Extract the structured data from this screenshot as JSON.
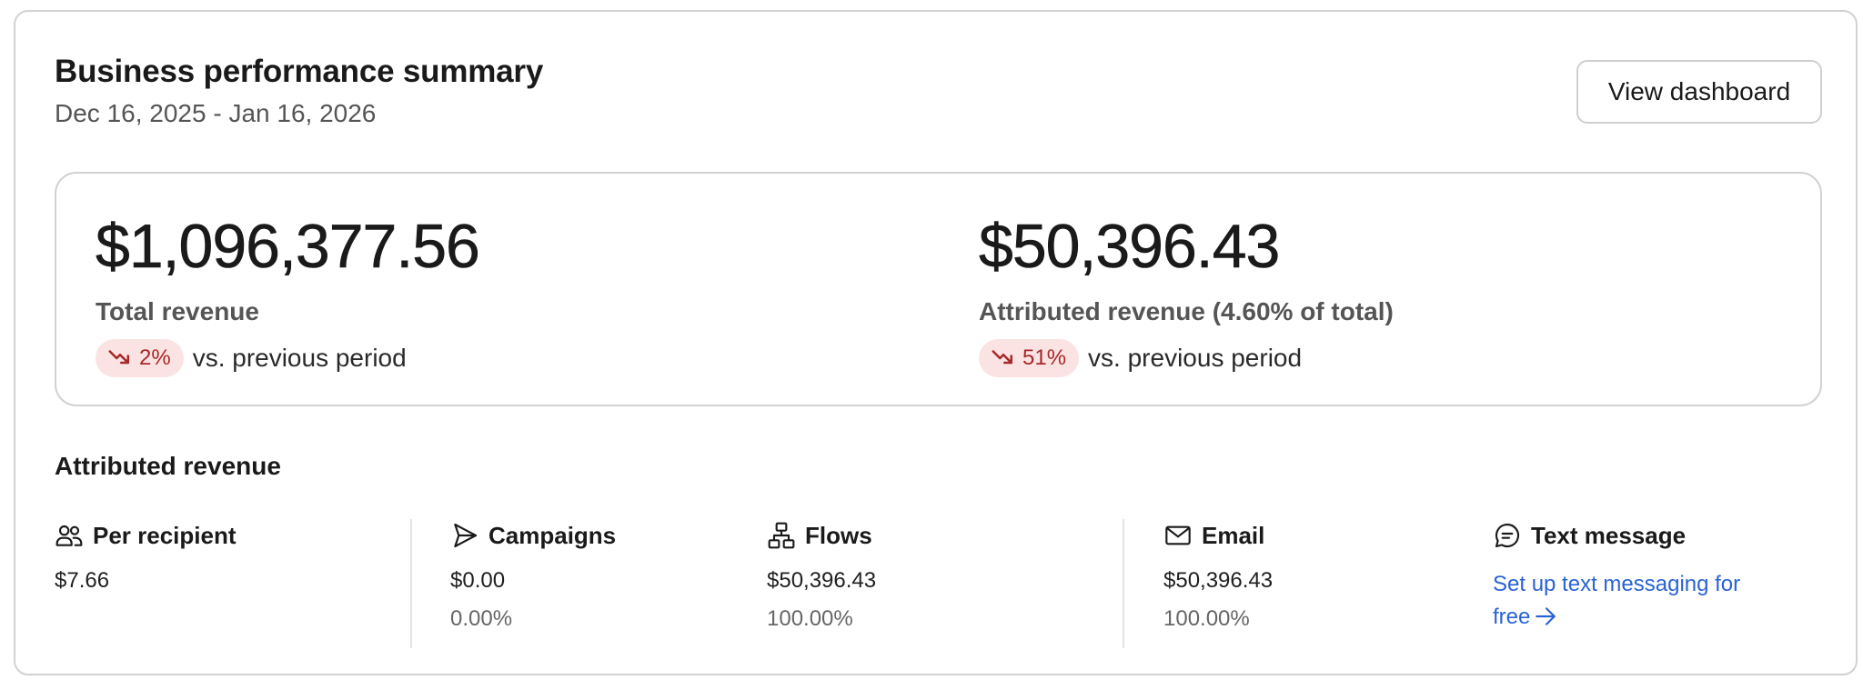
{
  "header": {
    "title": "Business performance summary",
    "date_range": "Dec 16, 2025 - Jan 16, 2026",
    "view_dashboard_label": "View dashboard"
  },
  "summary": {
    "total": {
      "value": "$1,096,377.56",
      "label": "Total revenue",
      "delta": "2%",
      "delta_direction": "down",
      "comparison": "vs. previous period"
    },
    "attributed": {
      "value": "$50,396.43",
      "label": "Attributed revenue (4.60% of total)",
      "delta": "51%",
      "delta_direction": "down",
      "comparison": "vs. previous period"
    }
  },
  "attributed_section": {
    "title": "Attributed revenue",
    "metrics": [
      {
        "label": "Per recipient",
        "icon": "people-icon",
        "value": "$7.66"
      },
      {
        "label": "Campaigns",
        "icon": "send-icon",
        "value": "$0.00",
        "percent": "0.00%"
      },
      {
        "label": "Flows",
        "icon": "flow-icon",
        "value": "$50,396.43",
        "percent": "100.00%"
      },
      {
        "label": "Email",
        "icon": "mail-icon",
        "value": "$50,396.43",
        "percent": "100.00%"
      },
      {
        "label": "Text message",
        "icon": "message-icon",
        "link_text": "Set up text messaging for free"
      }
    ]
  },
  "colors": {
    "delta_negative_bg": "#fbe3e3",
    "delta_negative_fg": "#a62828",
    "link": "#2a63d4",
    "border": "#d2d2d2"
  }
}
